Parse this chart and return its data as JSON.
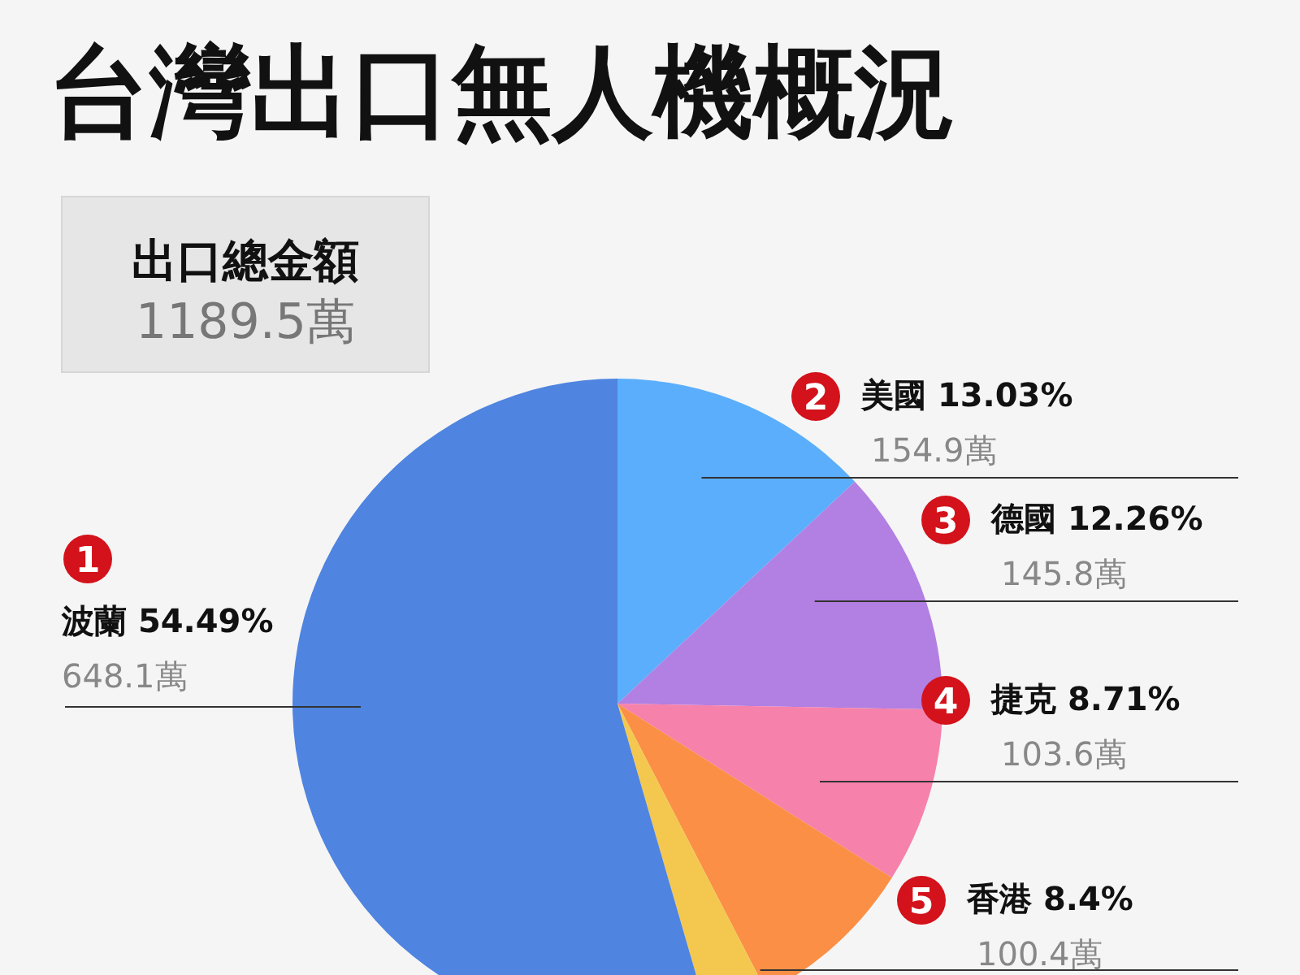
{
  "chart_data": {
    "type": "pie",
    "title": "台灣出口無人機概況",
    "categories": [
      "美國",
      "德國",
      "捷克",
      "香港",
      null,
      "波蘭"
    ],
    "values": [
      13.03,
      12.26,
      8.71,
      8.4,
      3.11,
      54.49
    ],
    "value_labels": [
      "13.03%",
      "12.26%",
      "8.71%",
      "8.4%",
      null,
      "54.49%"
    ],
    "colors": [
      "#5aaefc",
      "#b27fe3",
      "#f681ab",
      "#fb8f45",
      "#f4c84f",
      "#4f84e0"
    ],
    "annotations": [
      "出口總金額",
      "1189.5萬",
      {
        "text": "2",
        "x": "美國"
      },
      {
        "text": "154.9萬",
        "x": "美國"
      },
      {
        "text": "3",
        "x": "德國"
      },
      {
        "text": "145.8萬",
        "x": "德國"
      },
      {
        "text": "4",
        "x": "捷克"
      },
      {
        "text": "103.6萬",
        "x": "捷克"
      },
      {
        "text": "5",
        "x": "香港"
      },
      {
        "text": "100.4萬",
        "x": "香港"
      },
      {
        "text": "1",
        "x": "波蘭"
      },
      {
        "text": "648.1萬",
        "x": "波蘭"
      }
    ]
  }
}
